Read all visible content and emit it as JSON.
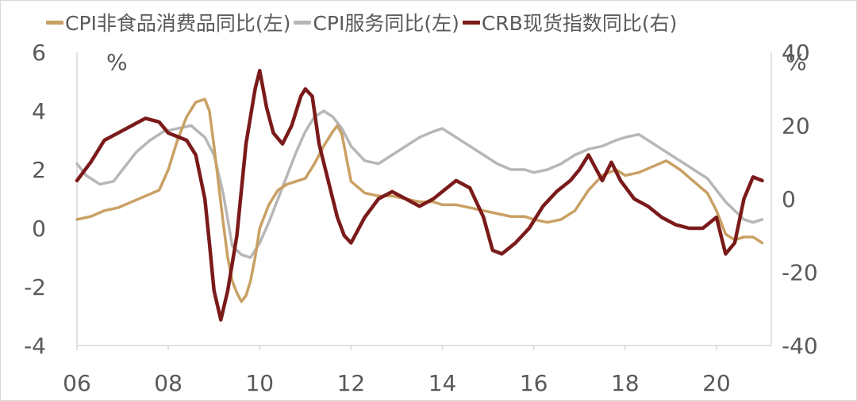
{
  "chart_data": {
    "type": "line",
    "legend": [
      {
        "key": "s1",
        "label": "CPI非食品消费品同比(左)",
        "color": "#c9a064"
      },
      {
        "key": "s2",
        "label": "CPI服务同比(左)",
        "color": "#b7b7b7"
      },
      {
        "key": "s3",
        "label": "CRB现货指数同比(右)",
        "color": "#7b1a1a"
      }
    ],
    "left_unit": "%",
    "right_unit": "%",
    "x_ticks": [
      "06",
      "08",
      "10",
      "12",
      "14",
      "16",
      "18",
      "20"
    ],
    "x_range": [
      2006.0,
      2021.2
    ],
    "y_left": {
      "ticks": [
        "6",
        "4",
        "2",
        "0",
        "-2",
        "-4"
      ],
      "range": [
        -4,
        6
      ]
    },
    "y_right": {
      "ticks": [
        "40",
        "20",
        "0",
        "-20",
        "-40"
      ],
      "range": [
        -40,
        40
      ]
    },
    "series": [
      {
        "name": "CPI非食品消费品同比(左)",
        "axis": "left",
        "color": "#c9a064",
        "x": [
          2006.0,
          2006.3,
          2006.6,
          2006.9,
          2007.2,
          2007.5,
          2007.8,
          2008.0,
          2008.2,
          2008.4,
          2008.6,
          2008.8,
          2008.9,
          2009.0,
          2009.1,
          2009.2,
          2009.3,
          2009.4,
          2009.5,
          2009.6,
          2009.7,
          2009.8,
          2009.9,
          2010.0,
          2010.2,
          2010.4,
          2010.6,
          2010.8,
          2011.0,
          2011.2,
          2011.4,
          2011.6,
          2011.7,
          2011.8,
          2011.9,
          2012.0,
          2012.3,
          2012.6,
          2012.9,
          2013.2,
          2013.5,
          2013.8,
          2014.0,
          2014.3,
          2014.6,
          2014.9,
          2015.2,
          2015.5,
          2015.8,
          2016.0,
          2016.3,
          2016.6,
          2016.9,
          2017.2,
          2017.5,
          2017.8,
          2018.0,
          2018.3,
          2018.6,
          2018.9,
          2019.2,
          2019.5,
          2019.8,
          2020.0,
          2020.2,
          2020.4,
          2020.6,
          2020.8,
          2021.0
        ],
        "values": [
          0.3,
          0.4,
          0.6,
          0.7,
          0.9,
          1.1,
          1.3,
          2.0,
          3.0,
          3.8,
          4.3,
          4.4,
          4.0,
          2.8,
          1.5,
          0.2,
          -1.0,
          -1.8,
          -2.2,
          -2.5,
          -2.3,
          -1.8,
          -1.0,
          0.0,
          0.8,
          1.3,
          1.5,
          1.6,
          1.7,
          2.2,
          2.8,
          3.3,
          3.5,
          3.2,
          2.4,
          1.6,
          1.2,
          1.1,
          1.1,
          1.0,
          0.9,
          0.9,
          0.8,
          0.8,
          0.7,
          0.6,
          0.5,
          0.4,
          0.4,
          0.3,
          0.2,
          0.3,
          0.6,
          1.3,
          1.8,
          2.0,
          1.8,
          1.9,
          2.1,
          2.3,
          2.0,
          1.6,
          1.2,
          0.6,
          -0.2,
          -0.4,
          -0.3,
          -0.3,
          -0.5
        ]
      },
      {
        "name": "CPI服务同比(左)",
        "axis": "left",
        "color": "#b7b7b7",
        "x": [
          2006.0,
          2006.2,
          2006.5,
          2006.8,
          2007.0,
          2007.3,
          2007.6,
          2007.9,
          2008.2,
          2008.5,
          2008.8,
          2009.0,
          2009.2,
          2009.4,
          2009.6,
          2009.8,
          2010.0,
          2010.2,
          2010.4,
          2010.6,
          2010.8,
          2011.0,
          2011.2,
          2011.4,
          2011.6,
          2011.8,
          2012.0,
          2012.3,
          2012.6,
          2012.9,
          2013.2,
          2013.5,
          2013.8,
          2014.0,
          2014.3,
          2014.6,
          2014.9,
          2015.2,
          2015.5,
          2015.8,
          2016.0,
          2016.3,
          2016.6,
          2016.9,
          2017.2,
          2017.5,
          2017.8,
          2018.0,
          2018.3,
          2018.6,
          2018.9,
          2019.2,
          2019.5,
          2019.8,
          2020.0,
          2020.2,
          2020.4,
          2020.6,
          2020.8,
          2021.0
        ],
        "values": [
          2.2,
          1.8,
          1.5,
          1.6,
          2.0,
          2.6,
          3.0,
          3.3,
          3.4,
          3.5,
          3.1,
          2.5,
          1.2,
          -0.6,
          -0.9,
          -1.0,
          -0.5,
          0.2,
          1.0,
          1.8,
          2.6,
          3.3,
          3.8,
          4.0,
          3.8,
          3.4,
          2.8,
          2.3,
          2.2,
          2.5,
          2.8,
          3.1,
          3.3,
          3.4,
          3.1,
          2.8,
          2.5,
          2.2,
          2.0,
          2.0,
          1.9,
          2.0,
          2.2,
          2.5,
          2.7,
          2.8,
          3.0,
          3.1,
          3.2,
          2.9,
          2.6,
          2.3,
          2.0,
          1.7,
          1.3,
          0.9,
          0.6,
          0.3,
          0.2,
          0.3
        ]
      },
      {
        "name": "CRB现货指数同比(右)",
        "axis": "right",
        "color": "#7b1a1a",
        "x": [
          2006.0,
          2006.3,
          2006.6,
          2006.9,
          2007.2,
          2007.5,
          2007.8,
          2008.0,
          2008.2,
          2008.4,
          2008.6,
          2008.8,
          2008.9,
          2009.0,
          2009.15,
          2009.3,
          2009.5,
          2009.7,
          2009.9,
          2010.0,
          2010.15,
          2010.3,
          2010.5,
          2010.7,
          2010.9,
          2011.0,
          2011.15,
          2011.3,
          2011.5,
          2011.7,
          2011.85,
          2012.0,
          2012.3,
          2012.6,
          2012.9,
          2013.2,
          2013.5,
          2013.8,
          2014.0,
          2014.3,
          2014.6,
          2014.9,
          2015.1,
          2015.3,
          2015.6,
          2015.9,
          2016.2,
          2016.5,
          2016.8,
          2017.0,
          2017.2,
          2017.5,
          2017.7,
          2017.9,
          2018.2,
          2018.5,
          2018.8,
          2019.1,
          2019.4,
          2019.7,
          2020.0,
          2020.2,
          2020.4,
          2020.6,
          2020.8,
          2021.0
        ],
        "values": [
          5,
          10,
          16,
          18,
          20,
          22,
          21,
          18,
          17,
          16,
          12,
          0,
          -12,
          -25,
          -33,
          -25,
          -10,
          15,
          30,
          35,
          25,
          18,
          15,
          20,
          28,
          30,
          28,
          15,
          5,
          -5,
          -10,
          -12,
          -5,
          0,
          2,
          0,
          -2,
          0,
          2,
          5,
          3,
          -5,
          -14,
          -15,
          -12,
          -8,
          -2,
          2,
          5,
          8,
          12,
          5,
          10,
          5,
          0,
          -2,
          -5,
          -7,
          -8,
          -8,
          -5,
          -15,
          -12,
          0,
          6,
          5
        ]
      }
    ]
  }
}
